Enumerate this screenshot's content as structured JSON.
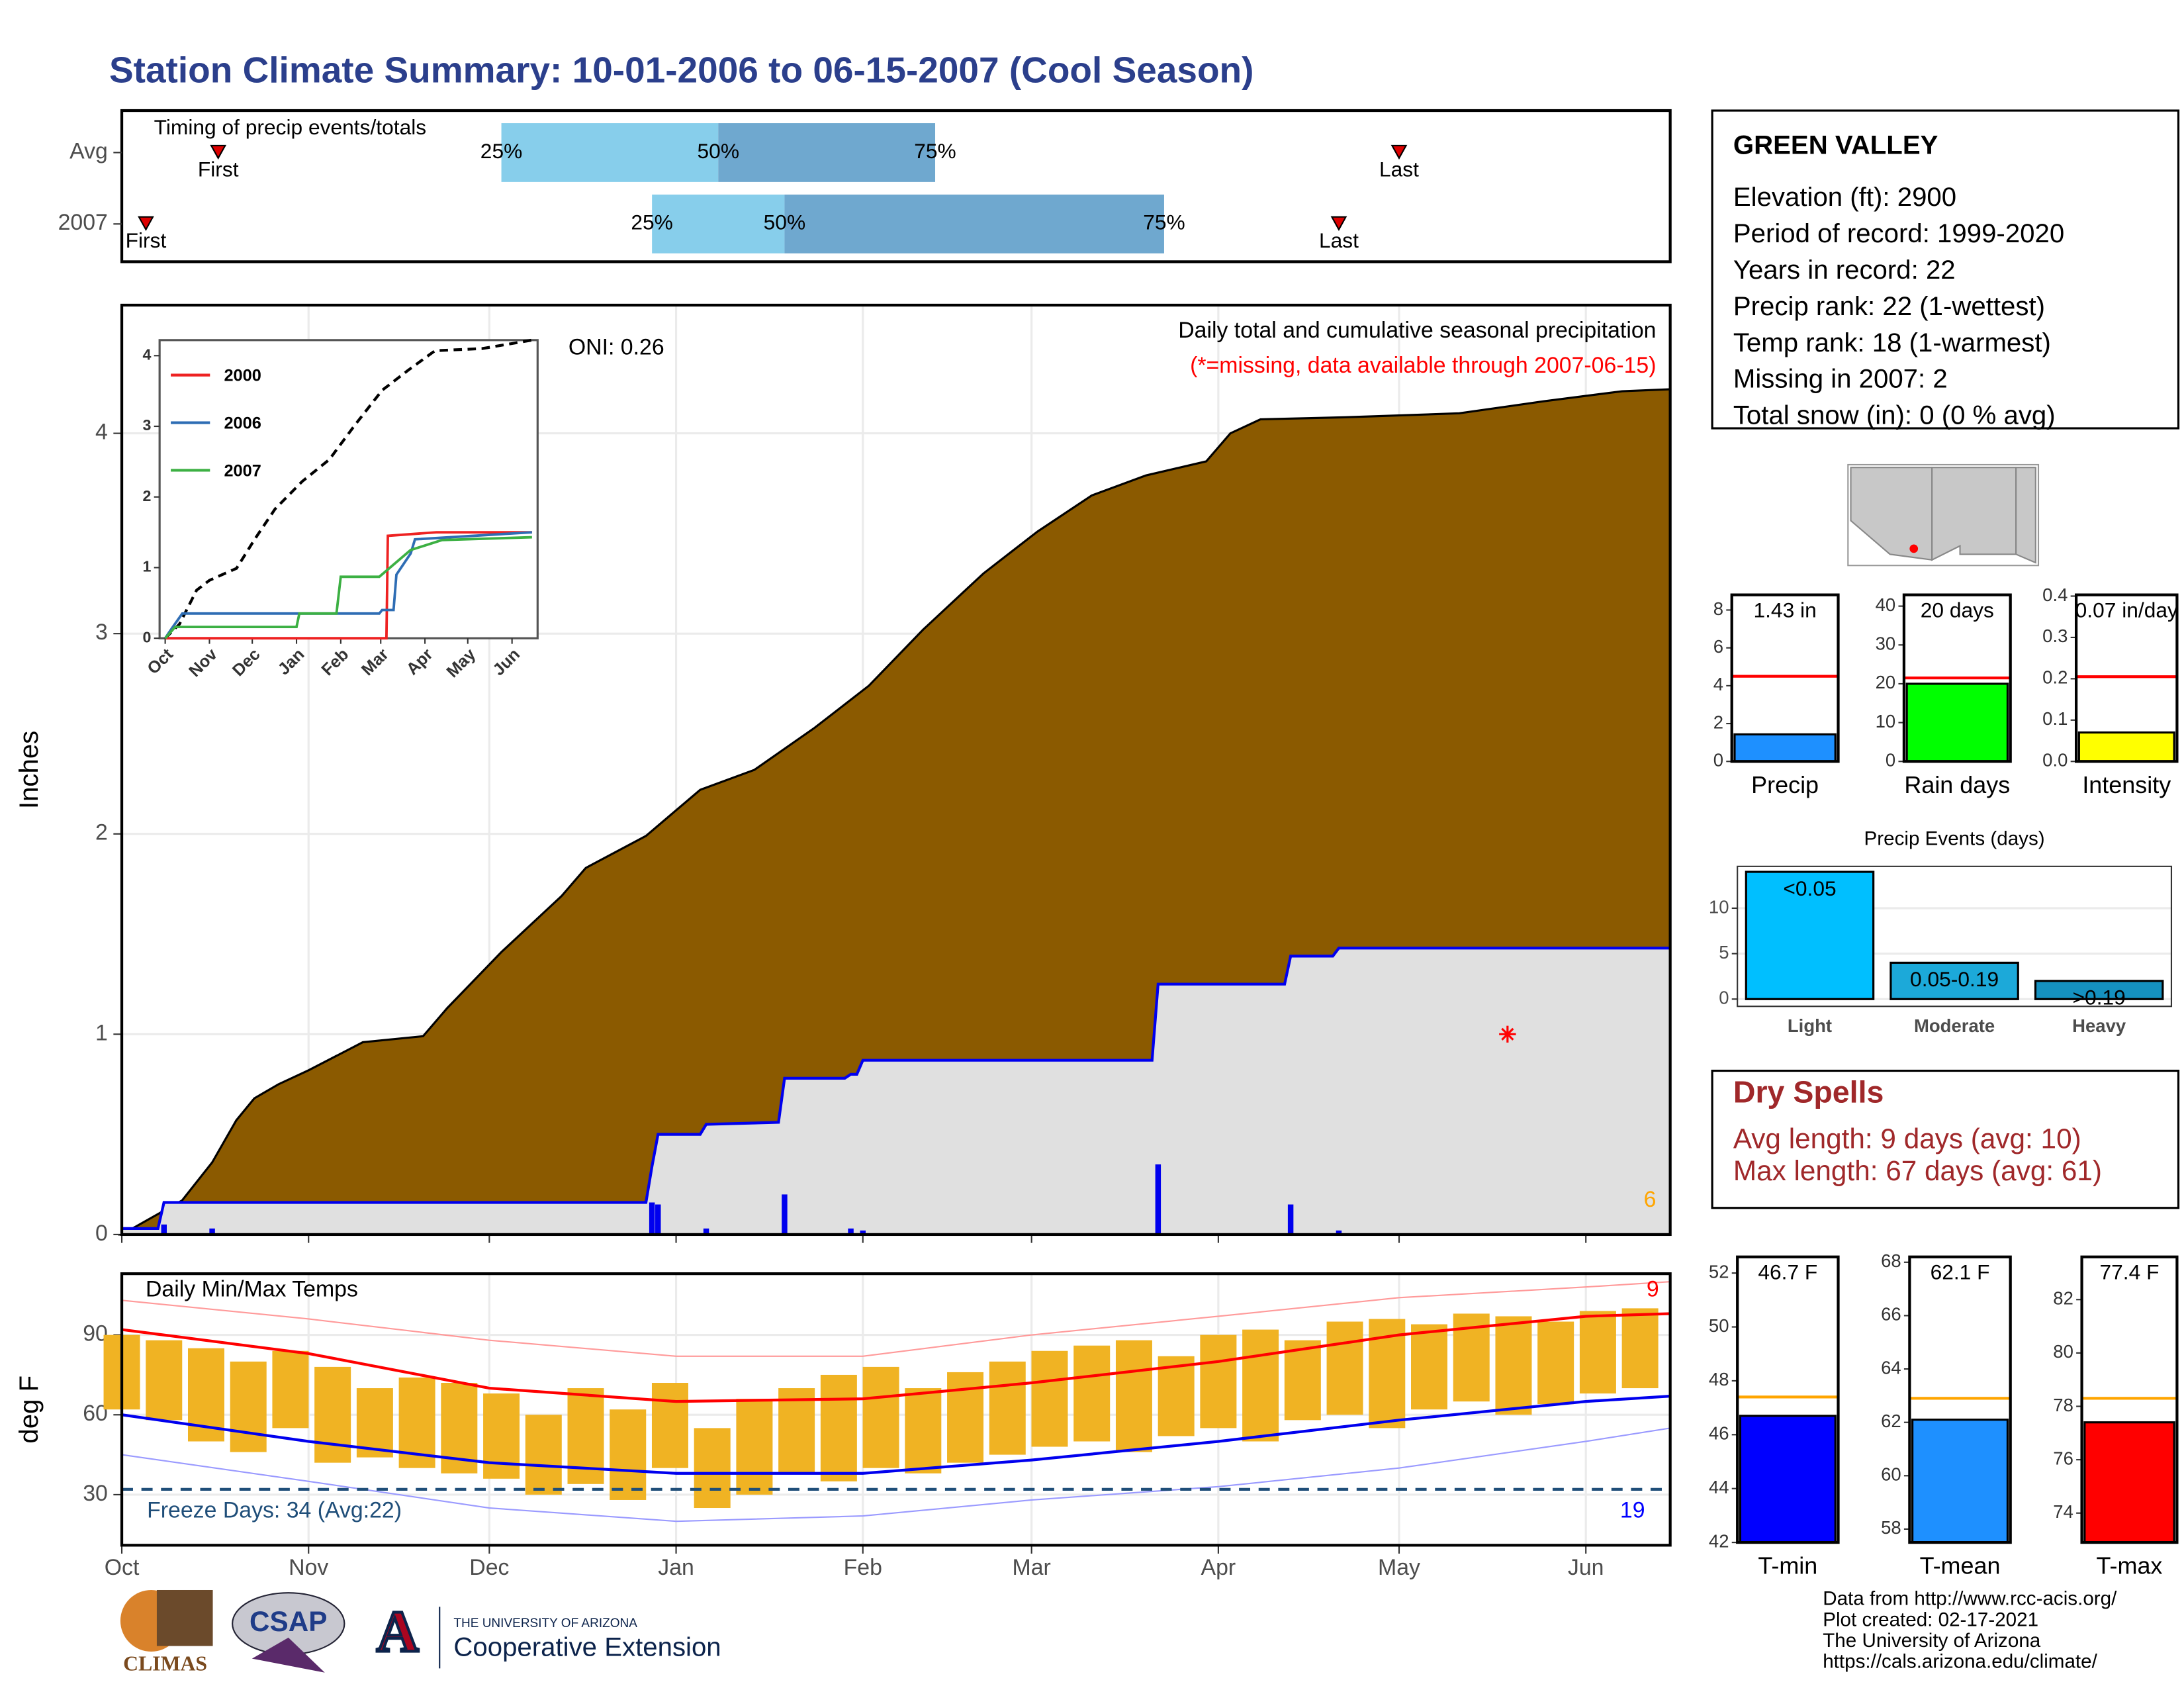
{
  "title": "Station Climate Summary: 10-01-2006 to 06-15-2007 (Cool Season)",
  "station": {
    "name": "GREEN VALLEY",
    "lines": [
      "Elevation (ft): 2900",
      "Period of record: 1999-2020",
      "Years in record: 22",
      "Precip rank: 22 (1-wettest)",
      "Temp rank: 18 (1-warmest)",
      "Missing in 2007: 2",
      "Total snow (in): 0 (0 % avg)"
    ]
  },
  "dry_spells": {
    "title": "Dry Spells",
    "lines": [
      "Avg length: 9 days (avg: 10)",
      "Max length: 67 days (avg: 61)"
    ]
  },
  "logos": {
    "climas": "CLIMAS",
    "csap": "CSAP",
    "ua_mark": "A",
    "ua_name": "THE UNIVERSITY OF ARIZONA",
    "ua_unit": "Cooperative Extension"
  },
  "credits": [
    "Data from http://www.rcc-acis.org/",
    "Plot created: 02-17-2021",
    "The University of Arizona",
    "https://cals.arizona.edu/climate/"
  ],
  "chart_data": [
    {
      "type": "timing",
      "title": "Timing of precip events/totals",
      "categories": [
        "Avg",
        "2007"
      ],
      "first": [
        16,
        4
      ],
      "q25": [
        63,
        88
      ],
      "q50": [
        99,
        110
      ],
      "q75": [
        135,
        173
      ],
      "last": [
        212,
        202
      ],
      "first_label": "First",
      "last_label": "Last",
      "q25_label": "25%",
      "q50_label": "50%",
      "q75_label": "75%",
      "colors": [
        "#87ceeb",
        "#6fa8cf"
      ],
      "marker_color": "#dd0000",
      "xlim": [
        0,
        257
      ]
    },
    {
      "type": "area",
      "title": "Daily total and cumulative seasonal precipitation",
      "subtitle": "(*=missing, data available through 2007-06-15)",
      "ylabel": "Inches",
      "annotation": "ONI: 0.26",
      "count_label": "6",
      "xlim": [
        0,
        257
      ],
      "ylim": [
        0,
        4.64
      ],
      "yticks": [
        0,
        1,
        2,
        3,
        4
      ],
      "grid": true,
      "series": [
        {
          "color": "#8b5a00",
          "x": [
            0,
            10,
            15,
            19,
            22,
            26,
            31,
            40,
            50,
            54,
            63,
            73,
            77,
            87,
            96,
            105,
            115,
            124,
            133,
            143,
            152,
            161,
            170,
            180,
            184,
            189,
            203,
            222,
            236,
            249,
            257
          ],
          "values": [
            0,
            0.17,
            0.36,
            0.57,
            0.68,
            0.75,
            0.82,
            0.96,
            0.99,
            1.13,
            1.41,
            1.69,
            1.83,
            1.99,
            2.22,
            2.32,
            2.53,
            2.74,
            3.02,
            3.3,
            3.51,
            3.69,
            3.79,
            3.86,
            4.0,
            4.07,
            4.08,
            4.1,
            4.16,
            4.21,
            4.22
          ]
        },
        {
          "color": "#0000ee",
          "x": [
            0,
            6,
            7,
            87,
            88,
            89,
            96,
            97,
            109,
            110,
            120,
            121,
            122,
            123,
            171,
            172,
            193,
            194,
            201,
            202,
            257
          ],
          "values": [
            0.03,
            0.03,
            0.16,
            0.16,
            0.34,
            0.5,
            0.5,
            0.55,
            0.56,
            0.78,
            0.78,
            0.8,
            0.8,
            0.87,
            0.87,
            1.25,
            1.25,
            1.39,
            1.39,
            1.43,
            1.43
          ]
        }
      ],
      "daily": {
        "color": "#0000ee",
        "x": [
          7,
          15,
          88,
          89,
          97,
          110,
          121,
          123,
          172,
          194,
          202
        ],
        "values": [
          0.05,
          0.03,
          0.16,
          0.15,
          0.03,
          0.2,
          0.03,
          0.02,
          0.35,
          0.15,
          0.02
        ]
      },
      "missing": {
        "color": "#ff0000",
        "x": [
          230
        ],
        "values": [
          1.0
        ]
      }
    },
    {
      "type": "line",
      "xlim": [
        0,
        257
      ],
      "xticks": [
        {
          "value": 0,
          "label": "Oct"
        },
        {
          "value": 31,
          "label": "Nov"
        },
        {
          "value": 61,
          "label": "Dec"
        },
        {
          "value": 92,
          "label": "Jan"
        },
        {
          "value": 123,
          "label": "Feb"
        },
        {
          "value": 151,
          "label": "Mar"
        },
        {
          "value": 182,
          "label": "Apr"
        },
        {
          "value": 212,
          "label": "May"
        },
        {
          "value": 243,
          "label": "Jun"
        }
      ],
      "ylim": [
        0,
        4.22
      ],
      "yticks": [
        0,
        1,
        2,
        3,
        4
      ],
      "avg": {
        "color": "#000000",
        "x": [
          0,
          10,
          22,
          31,
          50,
          63,
          77,
          96,
          115,
          133,
          152,
          170,
          189,
          222,
          257
        ],
        "values": [
          0,
          0.2,
          0.68,
          0.82,
          0.99,
          1.41,
          1.83,
          2.22,
          2.53,
          3.02,
          3.51,
          3.79,
          4.07,
          4.1,
          4.22
        ]
      },
      "series": [
        {
          "name": "2000",
          "color": "#ee2222",
          "x": [
            0,
            155,
            156,
            190,
            257
          ],
          "values": [
            0,
            0,
            1.45,
            1.5,
            1.5
          ]
        },
        {
          "name": "2006",
          "color": "#2e6db4",
          "x": [
            0,
            5,
            12,
            150,
            152,
            160,
            162,
            172,
            175,
            257
          ],
          "values": [
            0,
            0.15,
            0.35,
            0.35,
            0.4,
            0.4,
            0.9,
            1.2,
            1.4,
            1.5
          ]
        },
        {
          "name": "2007",
          "color": "#3cb043",
          "x": [
            0,
            7,
            92,
            94,
            120,
            123,
            150,
            172,
            180,
            194,
            257
          ],
          "values": [
            0,
            0.16,
            0.16,
            0.35,
            0.35,
            0.87,
            0.87,
            1.25,
            1.3,
            1.39,
            1.43
          ]
        }
      ]
    },
    {
      "type": "range-bar",
      "title": "Daily Min/Max Temps",
      "ylabel": "deg F",
      "xlim": [
        0,
        257
      ],
      "xticks": [
        {
          "value": 0,
          "label": "Oct"
        },
        {
          "value": 31,
          "label": "Nov"
        },
        {
          "value": 61,
          "label": "Dec"
        },
        {
          "value": 92,
          "label": "Jan"
        },
        {
          "value": 123,
          "label": "Feb"
        },
        {
          "value": 151,
          "label": "Mar"
        },
        {
          "value": 182,
          "label": "Apr"
        },
        {
          "value": 212,
          "label": "May"
        },
        {
          "value": 243,
          "label": "Jun"
        }
      ],
      "ylim": [
        11,
        113
      ],
      "yticks": [
        30,
        60,
        90
      ],
      "grid": true,
      "bar_color": "#f0b323",
      "x": [
        0,
        7,
        14,
        21,
        28,
        35,
        42,
        49,
        56,
        63,
        70,
        77,
        84,
        91,
        98,
        105,
        112,
        119,
        126,
        133,
        140,
        147,
        154,
        161,
        168,
        175,
        182,
        189,
        196,
        203,
        210,
        217,
        224,
        231,
        238,
        245,
        252
      ],
      "max": [
        90,
        88,
        85,
        80,
        84,
        78,
        70,
        74,
        72,
        68,
        60,
        70,
        62,
        72,
        55,
        66,
        70,
        75,
        78,
        70,
        76,
        80,
        84,
        86,
        88,
        82,
        90,
        92,
        88,
        95,
        96,
        94,
        98,
        97,
        95,
        99,
        100
      ],
      "min": [
        62,
        58,
        50,
        46,
        55,
        42,
        44,
        40,
        38,
        36,
        30,
        34,
        28,
        40,
        25,
        30,
        38,
        35,
        40,
        38,
        42,
        45,
        48,
        50,
        46,
        52,
        55,
        50,
        58,
        60,
        55,
        62,
        65,
        60,
        64,
        68,
        70
      ],
      "lines": [
        {
          "color": "#ff9a9a",
          "width": 1,
          "x": [
            0,
            31,
            61,
            92,
            123,
            151,
            182,
            212,
            243,
            257
          ],
          "values": [
            103,
            96,
            88,
            82,
            82,
            90,
            97,
            104,
            108,
            110
          ]
        },
        {
          "color": "#9a9aff",
          "width": 1,
          "x": [
            0,
            31,
            61,
            92,
            123,
            151,
            182,
            212,
            243,
            257
          ],
          "values": [
            45,
            35,
            25,
            20,
            22,
            28,
            33,
            40,
            50,
            55
          ]
        },
        {
          "color": "#ff0000",
          "width": 2,
          "x": [
            0,
            31,
            61,
            92,
            123,
            151,
            182,
            212,
            243,
            257
          ],
          "values": [
            92,
            83,
            70,
            65,
            66,
            72,
            80,
            90,
            97,
            98
          ]
        },
        {
          "color": "#0000ee",
          "width": 2,
          "x": [
            0,
            31,
            61,
            92,
            123,
            151,
            182,
            212,
            243,
            257
          ],
          "values": [
            60,
            50,
            42,
            38,
            38,
            43,
            50,
            58,
            65,
            67
          ]
        }
      ],
      "freeze": {
        "value": 32,
        "color": "#1f4e79",
        "label": "Freeze Days: 34 (Avg:22)"
      },
      "hot_count": {
        "label": "9",
        "color": "#ff0000"
      },
      "cold_count": {
        "label": "19",
        "color": "#0000ff"
      }
    },
    {
      "type": "bar",
      "categories": [
        "Precip"
      ],
      "values": [
        1.43
      ],
      "value_labels": [
        "1.43 in"
      ],
      "avg": 4.5,
      "avg_color": "#ff0000",
      "color": "#1e90ff",
      "ylim": [
        0,
        8.8
      ],
      "yticks": [
        0,
        2,
        4,
        6,
        8
      ]
    },
    {
      "type": "bar",
      "categories": [
        "Rain days"
      ],
      "values": [
        20
      ],
      "value_labels": [
        "20 days"
      ],
      "avg": 21.5,
      "avg_color": "#ff0000",
      "color": "#00ff00",
      "ylim": [
        0,
        42.9
      ],
      "yticks": [
        0,
        10,
        20,
        30,
        40
      ]
    },
    {
      "type": "bar",
      "categories": [
        "Intensity"
      ],
      "values": [
        0.07
      ],
      "value_labels": [
        "0.07 in/day"
      ],
      "avg": 0.205,
      "avg_color": "#ff0000",
      "color": "#ffff00",
      "ylim": [
        0,
        0.403
      ],
      "yticks": [
        {
          "value": 0,
          "label": "0.0"
        },
        0.1,
        0.2,
        0.3,
        0.4
      ]
    },
    {
      "type": "bar",
      "title": "Precip Events (days)",
      "categories": [
        "Light",
        "Moderate",
        "Heavy"
      ],
      "ranges": [
        "<0.05",
        "0.05-0.19",
        ">0.19"
      ],
      "values": [
        14,
        4,
        2
      ],
      "colors": [
        "#00bfff",
        "#1ca9d9",
        "#1591c0"
      ],
      "ylim": [
        -0.8,
        14.6
      ],
      "yticks": [
        0,
        5,
        10
      ],
      "grid": true
    },
    {
      "type": "bar",
      "categories": [
        "T-min"
      ],
      "values": [
        46.7
      ],
      "value_labels": [
        "46.7 F"
      ],
      "avg": 47.4,
      "avg_color": "#ffa500",
      "color": "#0000ff",
      "ylim": [
        42,
        52.6
      ],
      "yticks": [
        42,
        44,
        46,
        48,
        50,
        52
      ]
    },
    {
      "type": "bar",
      "categories": [
        "T-mean"
      ],
      "values": [
        62.1
      ],
      "value_labels": [
        "62.1 F"
      ],
      "avg": 62.9,
      "avg_color": "#ffa500",
      "color": "#1e90ff",
      "ylim": [
        57.5,
        68.2
      ],
      "yticks": [
        58,
        60,
        62,
        64,
        66,
        68
      ]
    },
    {
      "type": "bar",
      "categories": [
        "T-max"
      ],
      "values": [
        77.4
      ],
      "value_labels": [
        "77.4 F"
      ],
      "avg": 78.3,
      "avg_color": "#ffa500",
      "color": "#ff0000",
      "ylim": [
        72.9,
        83.6
      ],
      "yticks": [
        74,
        76,
        78,
        80,
        82
      ]
    }
  ]
}
